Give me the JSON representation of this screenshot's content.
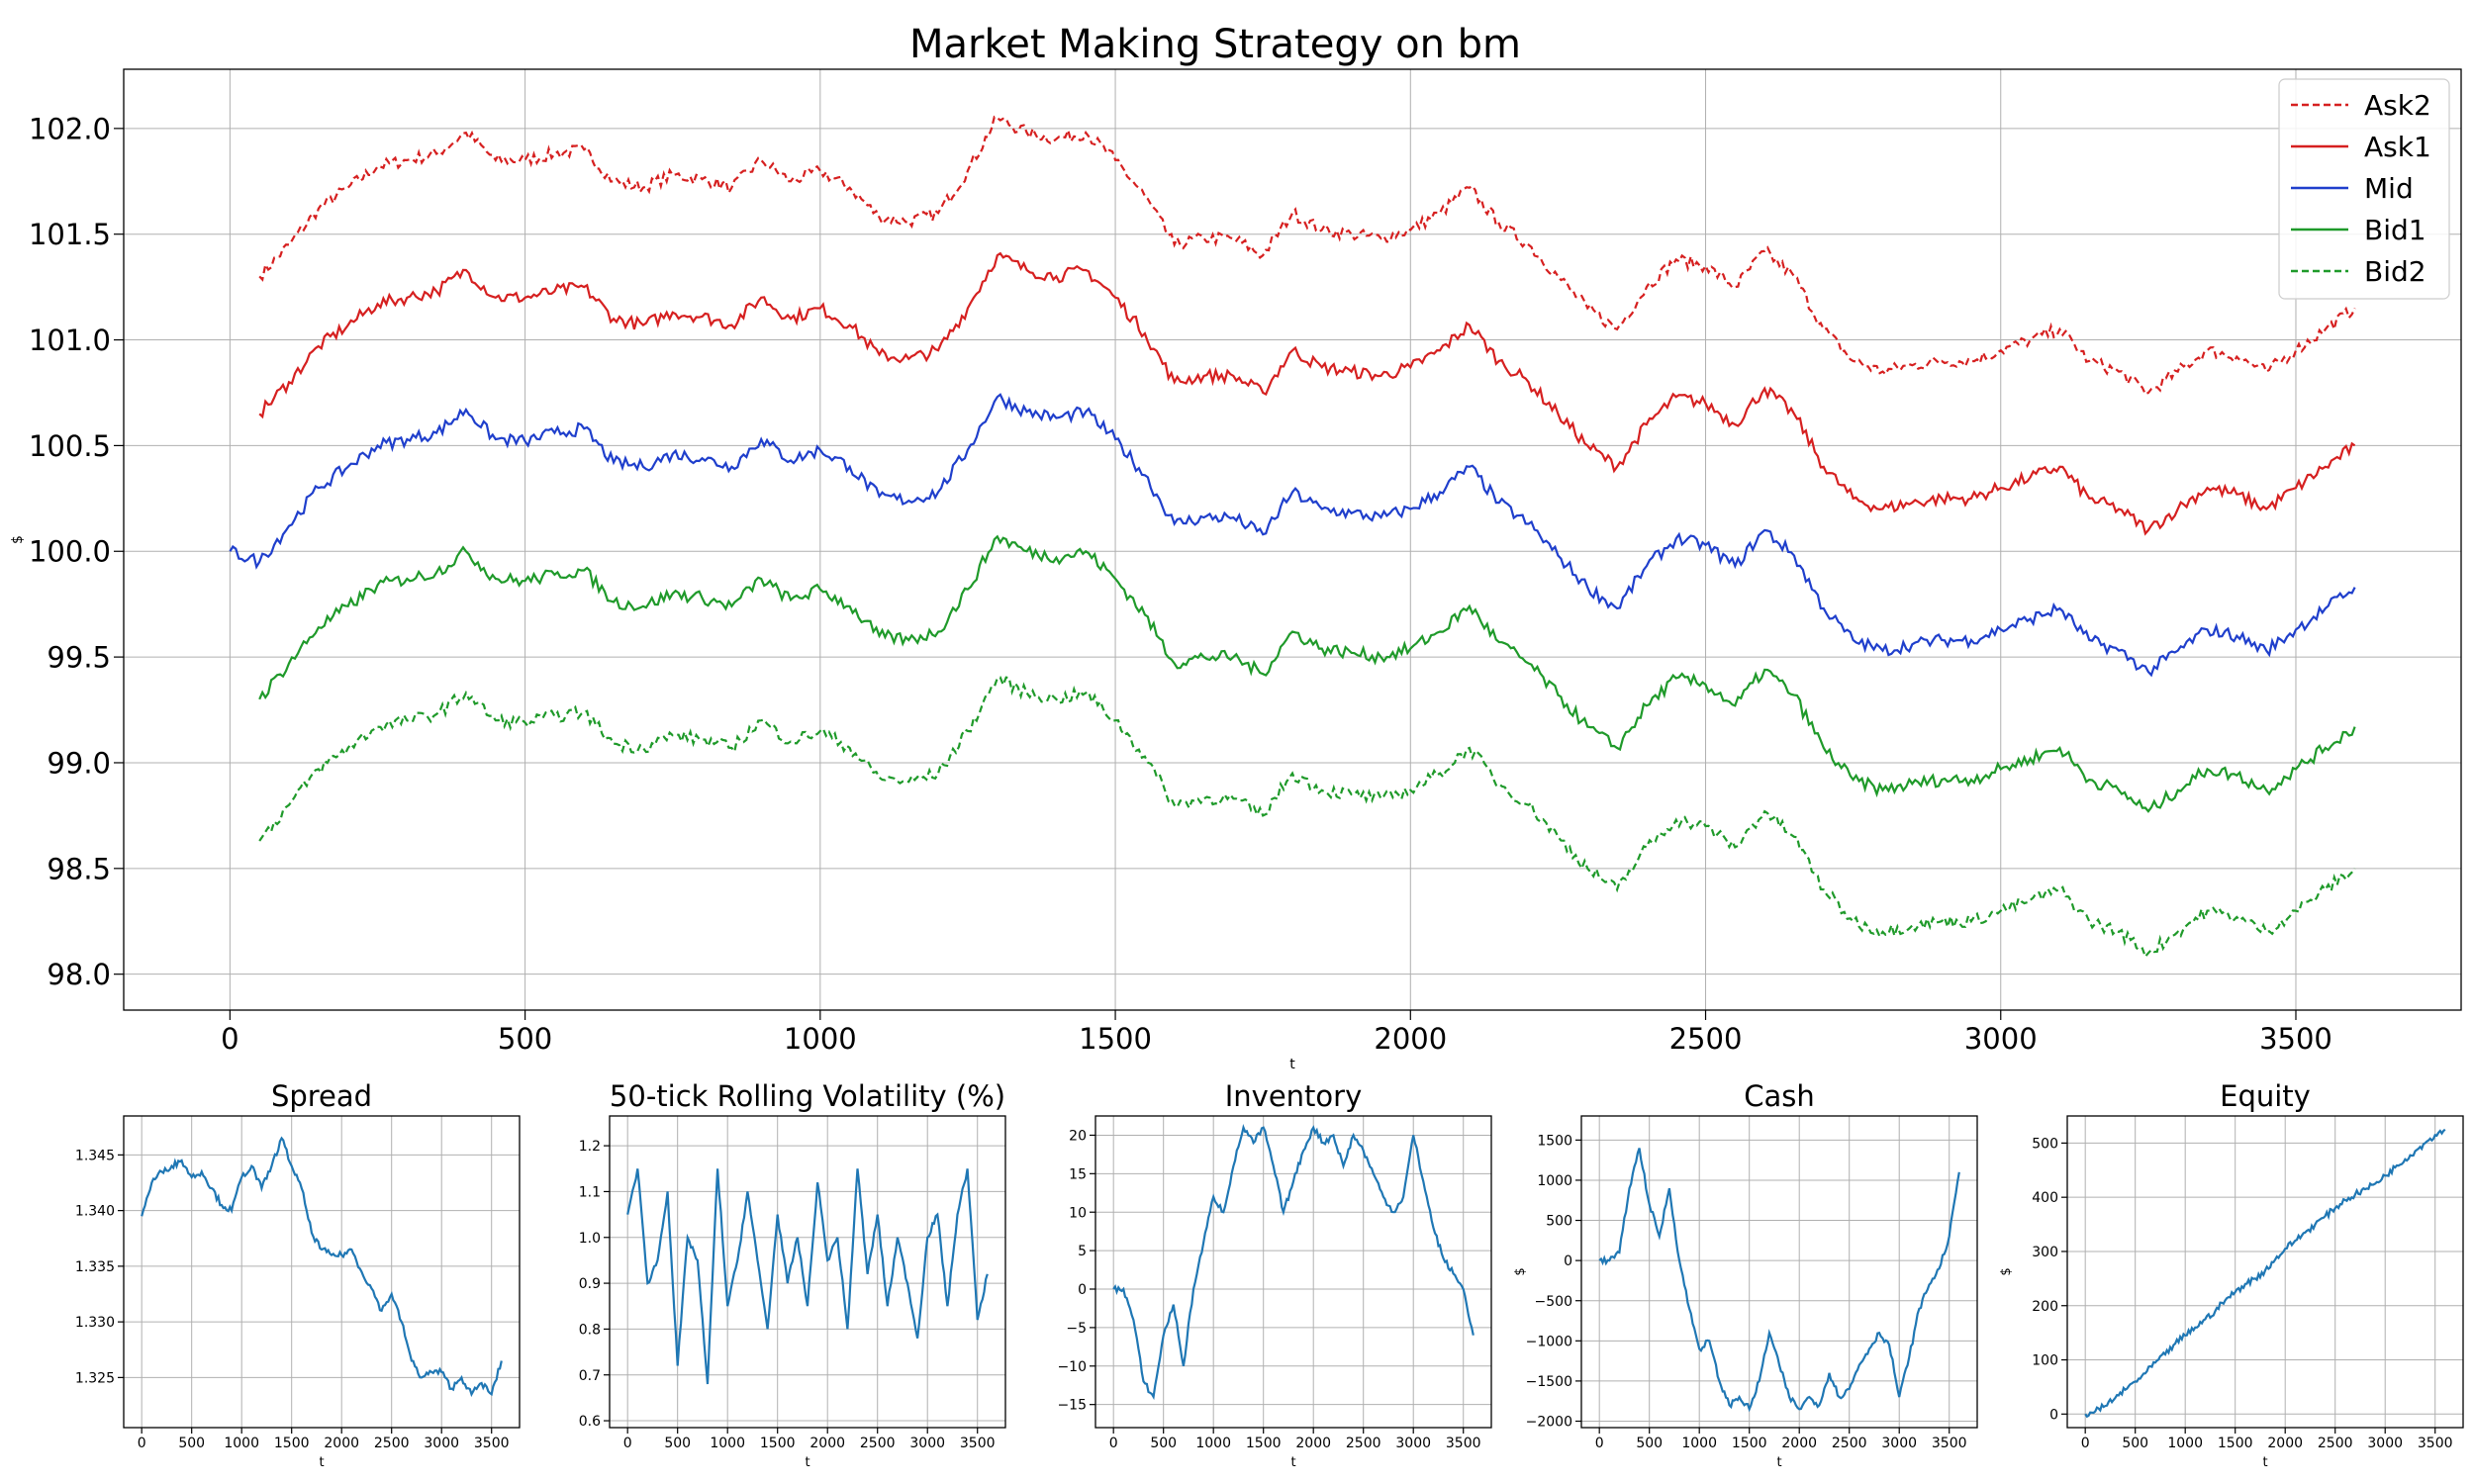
{
  "main_chart": {
    "title": "Market Making Strategy on bm",
    "xlabel": "t",
    "ylabel": "$",
    "xlim": [
      -180,
      3780
    ],
    "ylim": [
      97.83,
      102.28
    ],
    "xticks": [
      0,
      500,
      1000,
      1500,
      2000,
      2500,
      3000,
      3500
    ],
    "yticks": [
      98.0,
      98.5,
      99.0,
      99.5,
      100.0,
      100.5,
      101.0,
      101.5,
      102.0
    ],
    "legend": [
      {
        "label": "Ask2",
        "color": "#d62020",
        "dash": true
      },
      {
        "label": "Ask1",
        "color": "#d62020",
        "dash": false
      },
      {
        "label": "Mid",
        "color": "#1f3fcc",
        "dash": false
      },
      {
        "label": "Bid1",
        "color": "#1f9a2a",
        "dash": false
      },
      {
        "label": "Bid2",
        "color": "#1f9a2a",
        "dash": true
      }
    ]
  },
  "chart_data": [
    {
      "type": "line",
      "title": "Market Making Strategy on bm",
      "xlabel": "t",
      "ylabel": "$",
      "xlim": [
        -180,
        3780
      ],
      "ylim": [
        97.83,
        102.28
      ],
      "grid": true,
      "legend_position": "top-right",
      "x": [
        0,
        50,
        100,
        150,
        200,
        250,
        300,
        350,
        400,
        450,
        500,
        550,
        600,
        650,
        700,
        750,
        800,
        850,
        900,
        950,
        1000,
        1050,
        1100,
        1150,
        1200,
        1250,
        1300,
        1350,
        1400,
        1450,
        1500,
        1550,
        1600,
        1650,
        1700,
        1750,
        1800,
        1850,
        1900,
        1950,
        2000,
        2050,
        2100,
        2150,
        2200,
        2250,
        2300,
        2350,
        2400,
        2450,
        2500,
        2550,
        2600,
        2650,
        2700,
        2750,
        2800,
        2850,
        2900,
        2950,
        3000,
        3050,
        3100,
        3150,
        3200,
        3250,
        3300,
        3350,
        3400,
        3450,
        3500,
        3550,
        3600
      ],
      "series": [
        {
          "name": "Ask2",
          "color": "#d62020",
          "dash": true,
          "x_start": 50,
          "values": [
            null,
            101.3,
            101.45,
            101.62,
            101.72,
            101.82,
            101.85,
            101.88,
            101.98,
            101.85,
            101.85,
            101.88,
            101.9,
            101.75,
            101.72,
            101.78,
            101.76,
            101.72,
            101.85,
            101.75,
            101.8,
            101.72,
            101.58,
            101.56,
            101.6,
            101.8,
            102.05,
            101.98,
            101.95,
            101.98,
            101.85,
            101.68,
            101.45,
            101.48,
            101.48,
            101.4,
            101.6,
            101.52,
            101.5,
            101.48,
            101.52,
            101.6,
            101.72,
            101.55,
            101.45,
            101.3,
            101.15,
            101.05,
            101.25,
            101.38,
            101.35,
            101.25,
            101.42,
            101.3,
            101.05,
            100.9,
            100.85,
            100.88,
            100.9,
            100.9,
            100.95,
            101.0,
            101.05,
            100.9,
            100.85,
            100.75,
            100.85,
            100.95,
            100.92,
            100.85,
            100.95,
            101.05,
            101.15
          ]
        },
        {
          "name": "Ask1",
          "color": "#d62020",
          "dash": false,
          "x_start": 50,
          "values": [
            null,
            100.65,
            100.8,
            100.97,
            101.07,
            101.17,
            101.2,
            101.23,
            101.33,
            101.2,
            101.2,
            101.23,
            101.25,
            101.1,
            101.07,
            101.13,
            101.11,
            101.07,
            101.2,
            101.1,
            101.15,
            101.07,
            100.93,
            100.91,
            100.95,
            101.15,
            101.4,
            101.33,
            101.3,
            101.33,
            101.2,
            101.03,
            100.8,
            100.83,
            100.83,
            100.75,
            100.95,
            100.87,
            100.85,
            100.83,
            100.87,
            100.95,
            101.07,
            100.9,
            100.8,
            100.65,
            100.5,
            100.4,
            100.6,
            100.73,
            100.7,
            100.6,
            100.77,
            100.65,
            100.4,
            100.25,
            100.2,
            100.23,
            100.25,
            100.25,
            100.3,
            100.35,
            100.4,
            100.25,
            100.2,
            100.1,
            100.2,
            100.3,
            100.27,
            100.2,
            100.3,
            100.4,
            100.5
          ]
        },
        {
          "name": "Mid",
          "color": "#1f3fcc",
          "dash": false,
          "x_start": 0,
          "values": [
            100.0,
            99.95,
            100.12,
            100.3,
            100.4,
            100.5,
            100.53,
            100.56,
            100.67,
            100.53,
            100.52,
            100.56,
            100.58,
            100.42,
            100.4,
            100.46,
            100.44,
            100.4,
            100.53,
            100.43,
            100.48,
            100.4,
            100.26,
            100.24,
            100.28,
            100.48,
            100.73,
            100.66,
            100.63,
            100.66,
            100.53,
            100.36,
            100.13,
            100.16,
            100.16,
            100.08,
            100.28,
            100.2,
            100.18,
            100.16,
            100.2,
            100.28,
            100.4,
            100.23,
            100.13,
            99.98,
            99.83,
            99.73,
            99.93,
            100.06,
            100.03,
            99.93,
            100.1,
            99.98,
            99.73,
            99.58,
            99.53,
            99.56,
            99.58,
            99.58,
            99.63,
            99.68,
            99.73,
            99.58,
            99.53,
            99.43,
            99.53,
            99.63,
            99.6,
            99.53,
            99.63,
            99.73,
            99.83
          ]
        },
        {
          "name": "Bid1",
          "color": "#1f9a2a",
          "dash": false,
          "x_start": 50,
          "values": [
            null,
            99.3,
            99.47,
            99.64,
            99.74,
            99.84,
            99.87,
            99.9,
            100.0,
            99.87,
            99.86,
            99.89,
            99.91,
            99.76,
            99.74,
            99.8,
            99.78,
            99.74,
            99.87,
            99.77,
            99.82,
            99.74,
            99.6,
            99.58,
            99.62,
            99.82,
            100.07,
            100.0,
            99.97,
            100.0,
            99.87,
            99.7,
            99.47,
            99.5,
            99.5,
            99.42,
            99.62,
            99.54,
            99.52,
            99.5,
            99.54,
            99.62,
            99.74,
            99.57,
            99.47,
            99.32,
            99.17,
            99.07,
            99.27,
            99.4,
            99.37,
            99.27,
            99.44,
            99.32,
            99.07,
            98.92,
            98.87,
            98.9,
            98.92,
            98.92,
            98.97,
            99.02,
            99.07,
            98.92,
            98.87,
            98.77,
            98.87,
            98.97,
            98.94,
            98.87,
            98.97,
            99.07,
            99.17
          ]
        },
        {
          "name": "Bid2",
          "color": "#1f9a2a",
          "dash": true,
          "x_start": 50,
          "values": [
            null,
            98.63,
            98.8,
            98.97,
            99.07,
            99.17,
            99.2,
            99.23,
            99.33,
            99.2,
            99.19,
            99.22,
            99.24,
            99.09,
            99.07,
            99.13,
            99.11,
            99.07,
            99.2,
            99.1,
            99.15,
            99.07,
            98.93,
            98.91,
            98.95,
            99.15,
            99.4,
            99.33,
            99.3,
            99.33,
            99.2,
            99.03,
            98.8,
            98.83,
            98.83,
            98.75,
            98.95,
            98.87,
            98.85,
            98.83,
            98.87,
            98.95,
            99.07,
            98.9,
            98.8,
            98.65,
            98.5,
            98.4,
            98.6,
            98.73,
            98.7,
            98.6,
            98.77,
            98.65,
            98.4,
            98.25,
            98.2,
            98.23,
            98.25,
            98.25,
            98.3,
            98.35,
            98.4,
            98.25,
            98.2,
            98.1,
            98.2,
            98.3,
            98.27,
            98.2,
            98.3,
            98.4,
            98.5
          ]
        }
      ]
    },
    {
      "type": "line",
      "title": "Spread",
      "xlabel": "t",
      "ylabel": "",
      "xlim": [
        -180,
        3780
      ],
      "ylim": [
        1.3205,
        1.3485
      ],
      "grid": true,
      "xticks": [
        0,
        500,
        1000,
        1500,
        2000,
        2500,
        3000,
        3500
      ],
      "yticks": [
        1.325,
        1.33,
        1.335,
        1.34,
        1.345
      ],
      "ytick_labels": [
        "1.325",
        "1.330",
        "1.335",
        "1.340",
        "1.345"
      ],
      "color": "#1f77b4",
      "x": [
        0,
        100,
        200,
        300,
        400,
        500,
        600,
        700,
        800,
        900,
        1000,
        1100,
        1200,
        1300,
        1400,
        1500,
        1600,
        1700,
        1800,
        1900,
        2000,
        2100,
        2200,
        2300,
        2400,
        2500,
        2600,
        2700,
        2800,
        2900,
        3000,
        3100,
        3200,
        3300,
        3400,
        3500,
        3600
      ],
      "values": [
        1.3395,
        1.3425,
        1.3435,
        1.344,
        1.3445,
        1.343,
        1.3435,
        1.342,
        1.3405,
        1.34,
        1.343,
        1.344,
        1.342,
        1.344,
        1.3465,
        1.344,
        1.342,
        1.338,
        1.3365,
        1.336,
        1.336,
        1.3365,
        1.3345,
        1.333,
        1.331,
        1.3325,
        1.33,
        1.3265,
        1.325,
        1.3255,
        1.3255,
        1.324,
        1.325,
        1.3235,
        1.3245,
        1.3235,
        1.3265
      ]
    },
    {
      "type": "line",
      "title": "50-tick Rolling Volatility (%)",
      "xlabel": "t",
      "ylabel": "",
      "xlim": [
        -180,
        3780
      ],
      "ylim": [
        0.585,
        1.265
      ],
      "grid": true,
      "xticks": [
        0,
        500,
        1000,
        1500,
        2000,
        2500,
        3000,
        3500
      ],
      "yticks": [
        0.6,
        0.7,
        0.8,
        0.9,
        1.0,
        1.1,
        1.2
      ],
      "ytick_labels": [
        "0.6",
        "0.7",
        "0.8",
        "0.9",
        "1.0",
        "1.1",
        "1.2"
      ],
      "color": "#1f77b4",
      "x": [
        0,
        100,
        200,
        300,
        400,
        500,
        600,
        700,
        800,
        900,
        1000,
        1100,
        1200,
        1300,
        1400,
        1500,
        1600,
        1700,
        1800,
        1900,
        2000,
        2100,
        2200,
        2300,
        2400,
        2500,
        2600,
        2700,
        2800,
        2900,
        3000,
        3100,
        3200,
        3300,
        3400,
        3500,
        3600
      ],
      "values": [
        1.05,
        1.15,
        0.9,
        0.95,
        1.1,
        0.72,
        1.0,
        0.95,
        0.68,
        1.15,
        0.85,
        0.95,
        1.1,
        0.95,
        0.8,
        1.05,
        0.9,
        1.0,
        0.85,
        1.12,
        0.95,
        1.0,
        0.8,
        1.15,
        0.92,
        1.05,
        0.85,
        1.0,
        0.9,
        0.78,
        1.0,
        1.05,
        0.85,
        1.05,
        1.15,
        0.82,
        0.92
      ]
    },
    {
      "type": "line",
      "title": "Inventory",
      "xlabel": "t",
      "ylabel": "",
      "xlim": [
        -180,
        3780
      ],
      "ylim": [
        -18,
        22.5
      ],
      "grid": true,
      "xticks": [
        0,
        500,
        1000,
        1500,
        2000,
        2500,
        3000,
        3500
      ],
      "yticks": [
        -15,
        -10,
        -5,
        0,
        5,
        10,
        15,
        20
      ],
      "ytick_labels": [
        "−15",
        "−10",
        "−5",
        "0",
        "5",
        "10",
        "15",
        "20"
      ],
      "color": "#1f77b4",
      "x": [
        0,
        100,
        200,
        300,
        400,
        500,
        600,
        700,
        800,
        900,
        1000,
        1100,
        1200,
        1300,
        1400,
        1500,
        1600,
        1700,
        1800,
        1900,
        2000,
        2100,
        2200,
        2300,
        2400,
        2500,
        2600,
        2700,
        2800,
        2900,
        3000,
        3100,
        3200,
        3300,
        3400,
        3500,
        3600
      ],
      "values": [
        0,
        0,
        -4,
        -12,
        -14,
        -6,
        -2,
        -10,
        0,
        6,
        12,
        10,
        16,
        21,
        19,
        21,
        16,
        10,
        14,
        18,
        21,
        19,
        20,
        16,
        20,
        18,
        15,
        12,
        10,
        12,
        20,
        14,
        8,
        4,
        2,
        0,
        -6
      ]
    },
    {
      "type": "line",
      "title": "Cash",
      "xlabel": "t",
      "ylabel": "$",
      "xlim": [
        -180,
        3780
      ],
      "ylim": [
        -2080,
        1800
      ],
      "grid": true,
      "xticks": [
        0,
        500,
        1000,
        1500,
        2000,
        2500,
        3000,
        3500
      ],
      "yticks": [
        -2000,
        -1500,
        -1000,
        -500,
        0,
        500,
        1000,
        1500
      ],
      "ytick_labels": [
        "−2000",
        "−1500",
        "−1000",
        "−500",
        "0",
        "500",
        "1000",
        "1500"
      ],
      "color": "#1f77b4",
      "x": [
        0,
        100,
        200,
        300,
        400,
        500,
        600,
        700,
        800,
        900,
        1000,
        1100,
        1200,
        1300,
        1400,
        1500,
        1600,
        1700,
        1800,
        1900,
        2000,
        2100,
        2200,
        2300,
        2400,
        2500,
        2600,
        2700,
        2800,
        2900,
        3000,
        3100,
        3200,
        3300,
        3400,
        3500,
        3600
      ],
      "values": [
        0,
        0,
        100,
        900,
        1400,
        700,
        300,
        900,
        0,
        -600,
        -1100,
        -1000,
        -1500,
        -1800,
        -1700,
        -1850,
        -1500,
        -900,
        -1300,
        -1700,
        -1850,
        -1700,
        -1800,
        -1400,
        -1700,
        -1600,
        -1300,
        -1100,
        -900,
        -1050,
        -1700,
        -1200,
        -600,
        -300,
        -100,
        300,
        1100
      ]
    },
    {
      "type": "line",
      "title": "Equity",
      "xlabel": "t",
      "ylabel": "$",
      "xlim": [
        -180,
        3780
      ],
      "ylim": [
        -25,
        550
      ],
      "grid": true,
      "xticks": [
        0,
        500,
        1000,
        1500,
        2000,
        2500,
        3000,
        3500
      ],
      "yticks": [
        0,
        100,
        200,
        300,
        400,
        500
      ],
      "ytick_labels": [
        "0",
        "100",
        "200",
        "300",
        "400",
        "500"
      ],
      "color": "#1f77b4",
      "x": [
        0,
        100,
        200,
        300,
        400,
        500,
        600,
        700,
        800,
        900,
        1000,
        1100,
        1200,
        1300,
        1400,
        1500,
        1600,
        1700,
        1800,
        1900,
        2000,
        2100,
        2200,
        2300,
        2400,
        2500,
        2600,
        2700,
        2800,
        2900,
        3000,
        3100,
        3200,
        3300,
        3400,
        3500,
        3600
      ],
      "values": [
        0,
        5,
        15,
        30,
        45,
        60,
        75,
        95,
        110,
        130,
        145,
        160,
        175,
        190,
        210,
        225,
        240,
        250,
        265,
        285,
        305,
        320,
        335,
        350,
        365,
        380,
        395,
        405,
        415,
        425,
        440,
        455,
        470,
        485,
        500,
        515,
        525
      ]
    }
  ]
}
